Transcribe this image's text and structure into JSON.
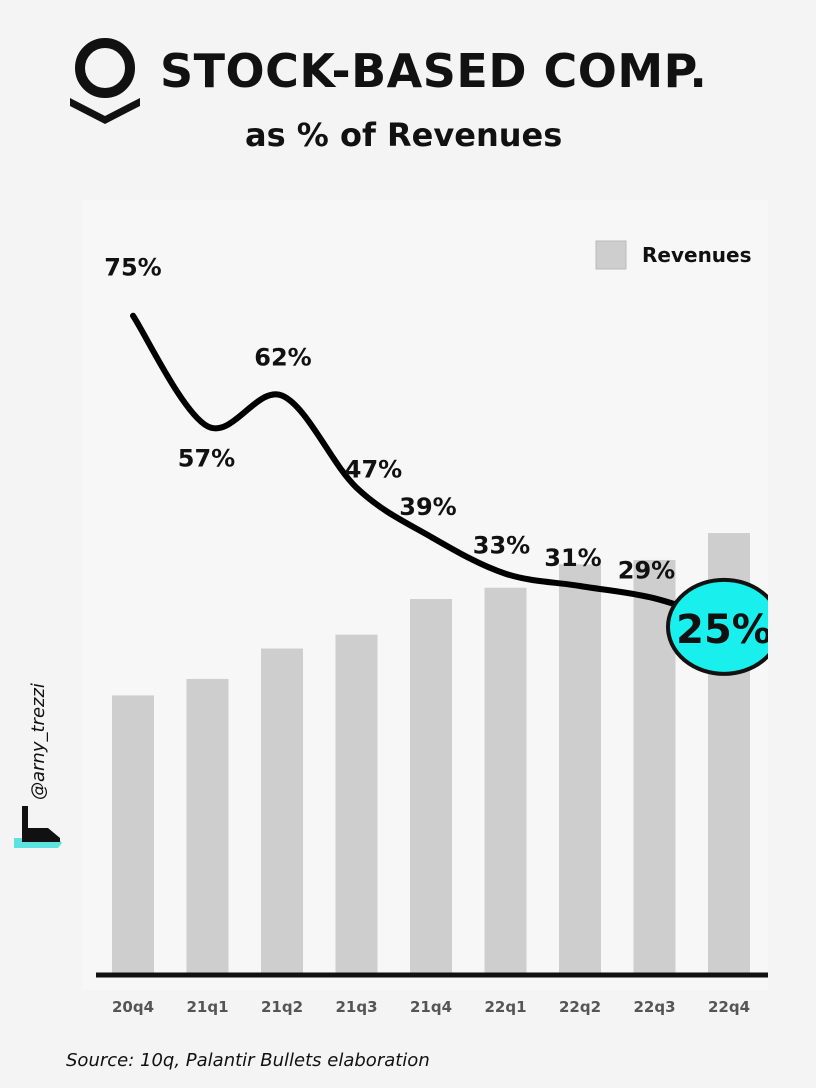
{
  "header": {
    "title": "STOCK-BASED COMP.",
    "subtitle": "as % of Revenues",
    "logo_icon": "palantir-logo-icon"
  },
  "watermark": {
    "handle": "@arny_trezzi",
    "icon": "arny-trezzi-mark-icon",
    "accent_color": "#5de3df"
  },
  "footer": {
    "source": "Source: 10q, Palantir Bullets elaboration"
  },
  "chart_data": {
    "type": "bar",
    "title": "STOCK-BASED COMP.",
    "subtitle": "as % of Revenues",
    "categories": [
      "20q4",
      "21q1",
      "21q2",
      "21q3",
      "21q4",
      "22q1",
      "22q2",
      "22q3",
      "22q4"
    ],
    "series": [
      {
        "name": "Revenues",
        "type": "bar",
        "values": [
          322,
          341,
          376,
          392,
          433,
          446,
          473,
          478,
          509
        ],
        "color": "#cfcece"
      },
      {
        "type": "line",
        "values": [
          75,
          57,
          62,
          47,
          39,
          33,
          31,
          29,
          25
        ],
        "labels": [
          "75%",
          "57%",
          "62%",
          "47%",
          "39%",
          "33%",
          "31%",
          "29%",
          "25%"
        ],
        "color": "#000000"
      }
    ],
    "highlight": {
      "category": "22q4",
      "label": "25%",
      "color": "#19f0ee"
    },
    "legend": {
      "position": "top-right",
      "entries": [
        "Revenues"
      ]
    },
    "grid": false,
    "bar_ylim": [
      0,
      615
    ],
    "line_ylim": [
      10,
      80
    ],
    "xlabel": "",
    "ylabel": ""
  }
}
